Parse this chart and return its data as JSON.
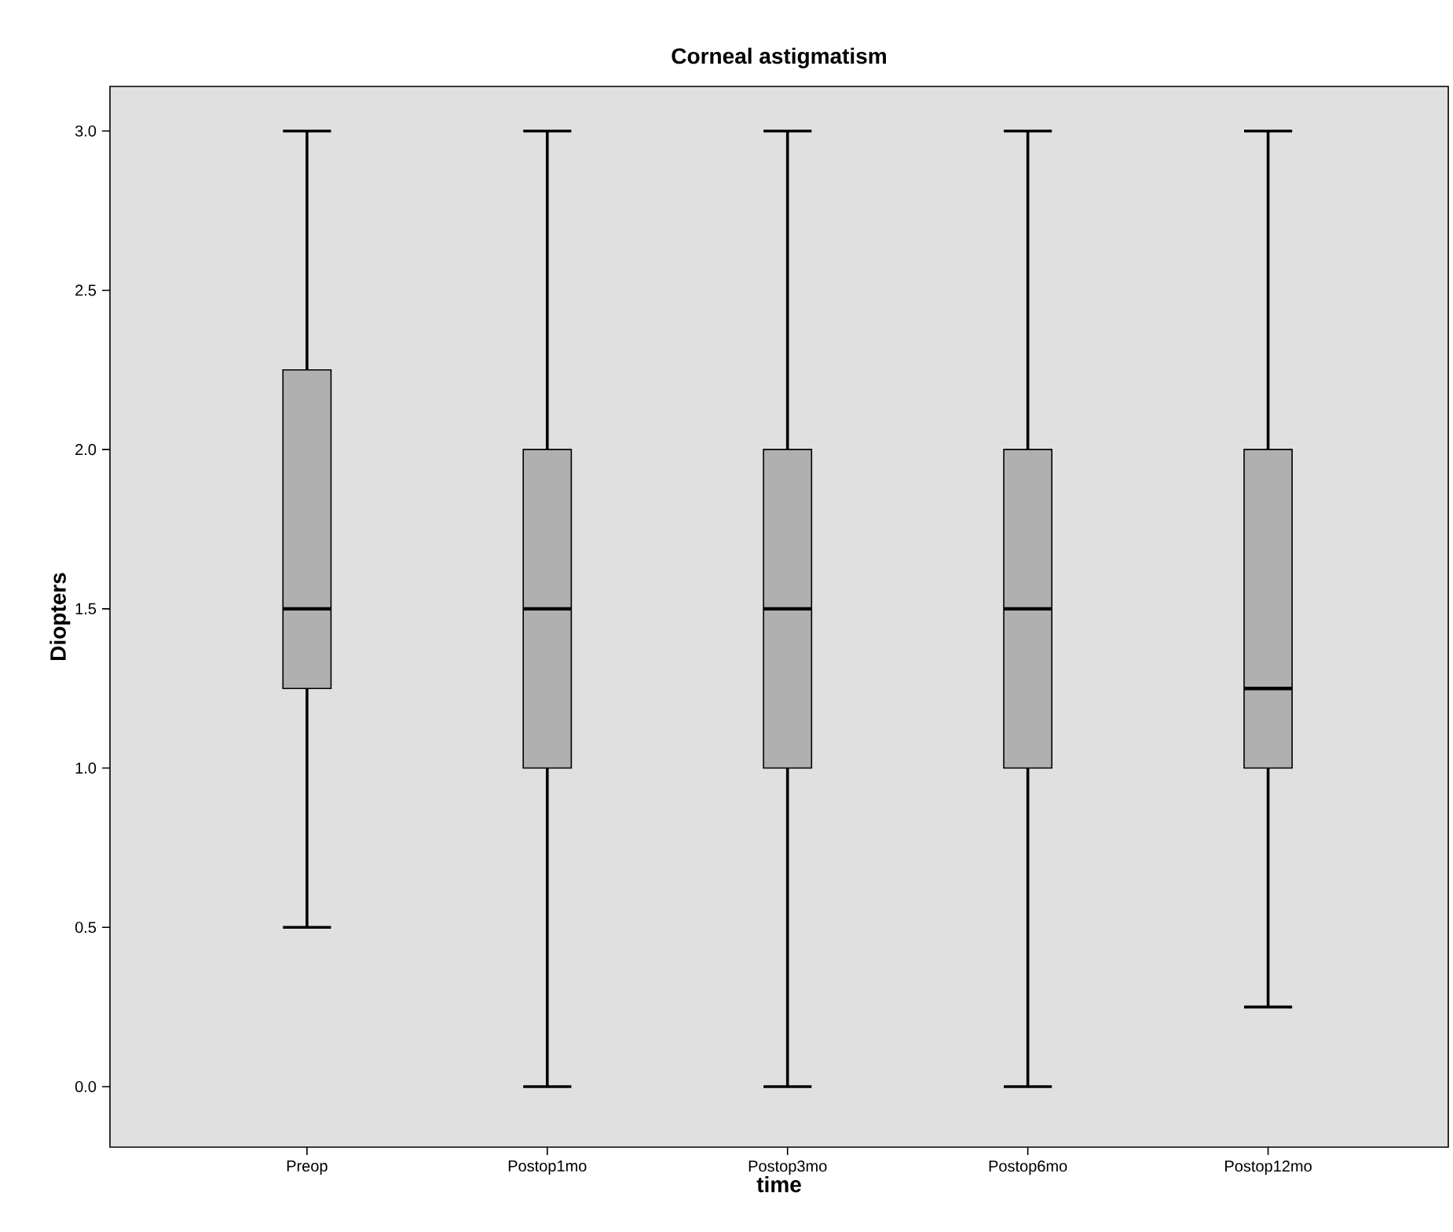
{
  "chart_data": {
    "type": "box",
    "title": "Corneal astigmatism",
    "xlabel": "time",
    "ylabel": "Diopters",
    "categories": [
      "Preop",
      "Postop1mo",
      "Postop3mo",
      "Postop6mo",
      "Postop12mo"
    ],
    "boxes": [
      {
        "low": 0.5,
        "q1": 1.25,
        "median": 1.5,
        "q3": 2.25,
        "high": 3.0
      },
      {
        "low": 0.0,
        "q1": 1.0,
        "median": 1.5,
        "q3": 2.0,
        "high": 3.0
      },
      {
        "low": 0.0,
        "q1": 1.0,
        "median": 1.5,
        "q3": 2.0,
        "high": 3.0
      },
      {
        "low": 0.0,
        "q1": 1.0,
        "median": 1.5,
        "q3": 2.0,
        "high": 3.0
      },
      {
        "low": 0.25,
        "q1": 1.0,
        "median": 1.25,
        "q3": 2.0,
        "high": 3.0
      }
    ],
    "color": "#b0b0b0",
    "ylim": [
      -0.19,
      3.14
    ],
    "yticks": [
      {
        "value": 0,
        "label": "0.0"
      },
      {
        "value": 0.5,
        "label": "0.5"
      },
      {
        "value": 1,
        "label": "1.0"
      },
      {
        "value": 1.5,
        "label": "1.5"
      },
      {
        "value": 2,
        "label": "2.0"
      },
      {
        "value": 2.5,
        "label": "2.5"
      },
      {
        "value": 3,
        "label": "3.0"
      }
    ],
    "grid": false
  }
}
